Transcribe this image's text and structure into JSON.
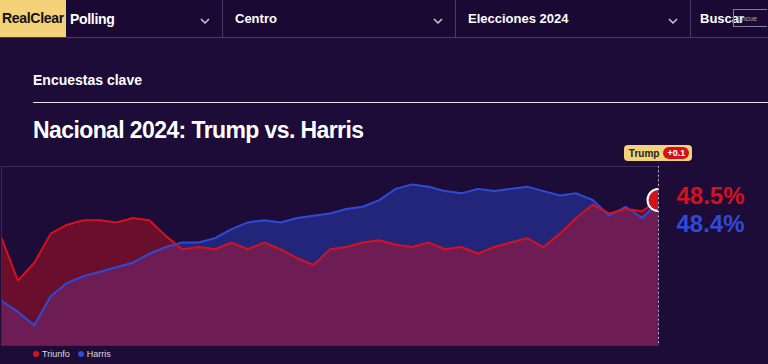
{
  "page": {
    "logo": "RealClear",
    "logo_suffix": "Polling",
    "menus": [
      "Centro",
      "Elecciones 2024"
    ],
    "search_label": "Buscar",
    "search_placeholder": "Encue",
    "section": "Encuestas clave"
  },
  "chart_data": {
    "type": "area",
    "title": "Nacional 2024: Trump vs. Harris",
    "x": [
      0,
      1,
      2,
      3,
      4,
      5,
      6,
      7,
      8,
      9,
      10,
      11,
      12,
      13,
      14,
      15,
      16,
      17,
      18,
      19,
      20,
      21,
      22,
      23,
      24,
      25,
      26,
      27,
      28,
      29,
      30,
      31,
      32,
      33,
      34,
      35,
      36,
      37,
      38,
      39,
      40
    ],
    "xlim": [
      0,
      40
    ],
    "ylim": [
      42,
      50
    ],
    "tick_labels": false,
    "legend": "bottom-left",
    "series": [
      {
        "name": "Triunfo",
        "color": "#d4121e",
        "values": [
          46.8,
          44.9,
          45.7,
          47.0,
          47.4,
          47.6,
          47.6,
          47.5,
          47.7,
          47.6,
          46.9,
          46.3,
          46.4,
          46.3,
          46.6,
          46.3,
          46.6,
          46.3,
          45.9,
          45.6,
          46.3,
          46.4,
          46.6,
          46.7,
          46.5,
          46.4,
          46.6,
          46.3,
          46.4,
          46.1,
          46.4,
          46.6,
          46.8,
          46.4,
          47.0,
          47.7,
          48.3,
          47.9,
          48.1,
          48.0,
          48.5
        ],
        "value_labels": [
          null,
          null,
          null,
          null,
          null,
          null,
          null,
          null,
          null,
          null,
          null,
          null,
          null,
          null,
          null,
          null,
          null,
          null,
          null,
          null,
          null,
          null,
          null,
          null,
          null,
          null,
          null,
          null,
          null,
          null,
          null,
          null,
          null,
          null,
          null,
          null,
          null,
          null,
          null,
          null,
          "48.5%"
        ]
      },
      {
        "name": "Harris",
        "color": "#2e4ad8",
        "values": [
          44.0,
          43.5,
          42.9,
          44.2,
          44.8,
          45.1,
          45.3,
          45.5,
          45.7,
          46.1,
          46.4,
          46.6,
          46.6,
          46.8,
          47.2,
          47.5,
          47.6,
          47.5,
          47.7,
          47.8,
          47.9,
          48.1,
          48.2,
          48.5,
          49.0,
          49.2,
          49.1,
          48.9,
          48.8,
          49.0,
          48.9,
          49.0,
          49.1,
          48.9,
          48.7,
          48.8,
          48.5,
          47.8,
          48.2,
          47.7,
          48.4
        ],
        "value_labels": [
          null,
          null,
          null,
          null,
          null,
          null,
          null,
          null,
          null,
          null,
          null,
          null,
          null,
          null,
          null,
          null,
          null,
          null,
          null,
          null,
          null,
          null,
          null,
          null,
          null,
          null,
          null,
          null,
          null,
          null,
          null,
          null,
          null,
          null,
          null,
          null,
          null,
          null,
          null,
          null,
          "48.4%"
        ]
      }
    ],
    "annotations": [
      {
        "text": "Trump",
        "label": "+0.1"
      }
    ]
  }
}
